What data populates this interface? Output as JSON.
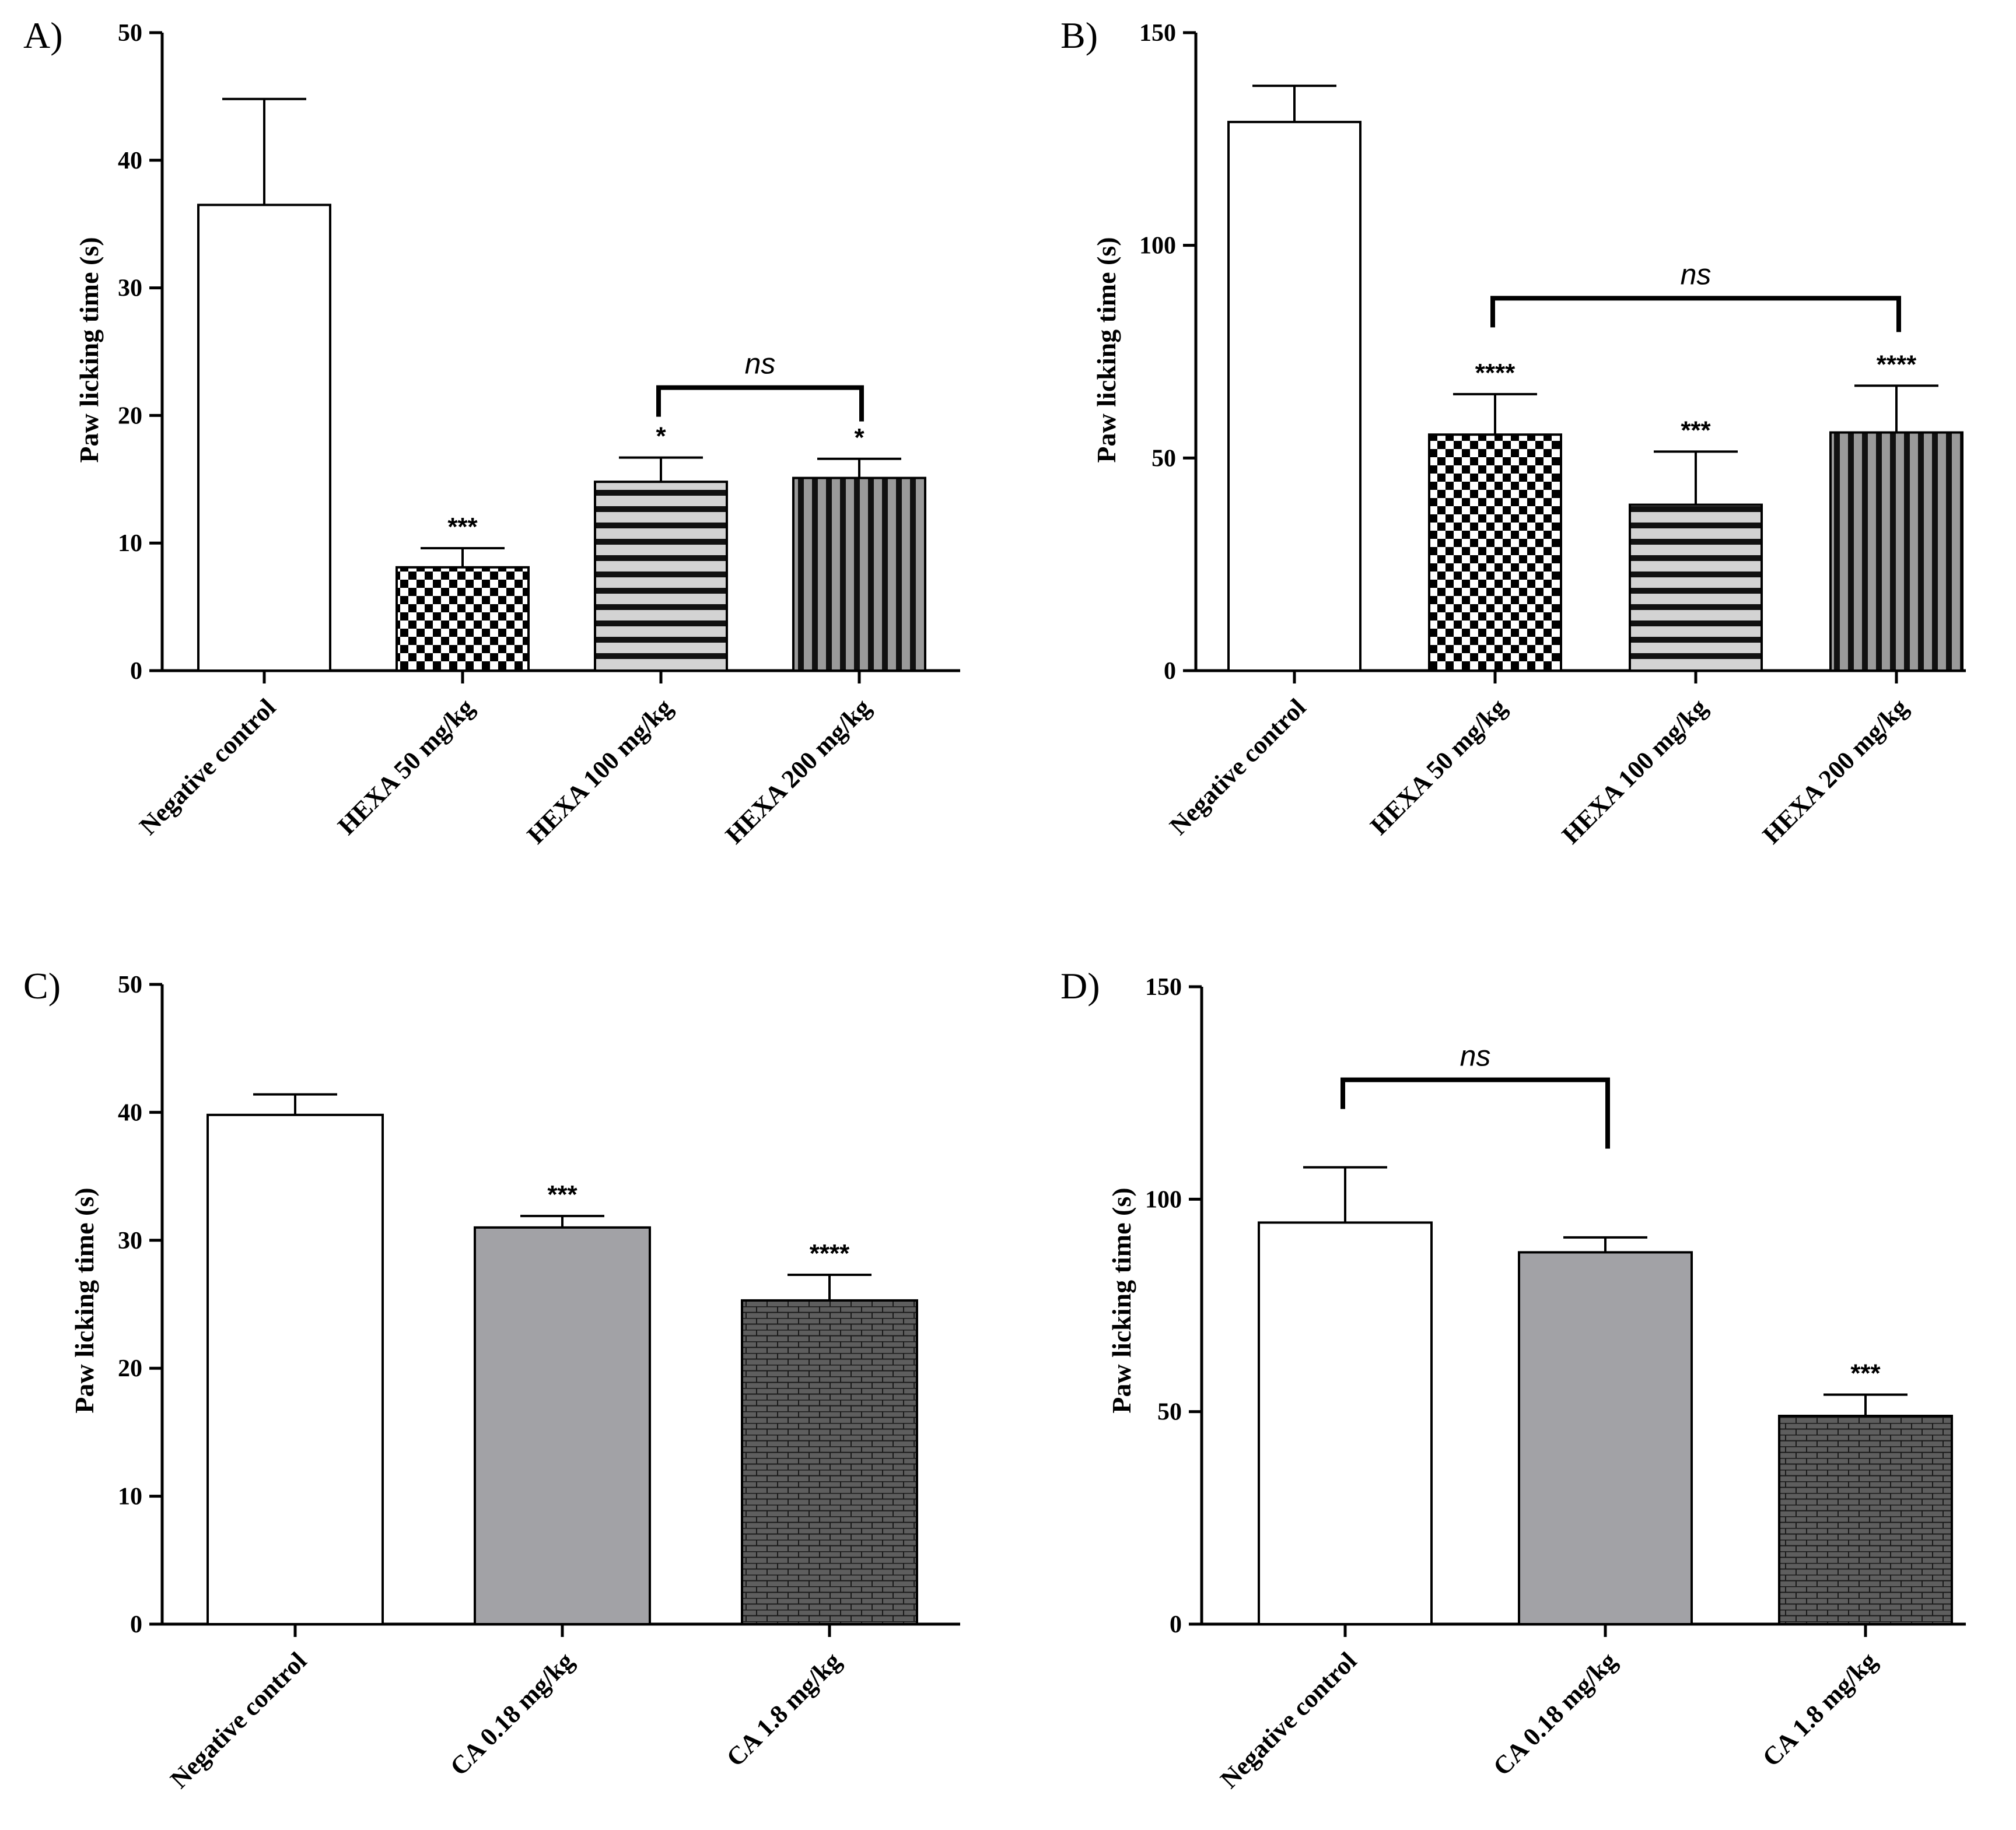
{
  "figure": {
    "panels": [
      "A",
      "B",
      "C",
      "D"
    ]
  },
  "chart_data": [
    {
      "id": "A",
      "panel_label": "A)",
      "type": "bar",
      "ylabel": "Paw licking time (s)",
      "ylim": [
        0,
        50
      ],
      "yticks": [
        0,
        10,
        20,
        30,
        40,
        50
      ],
      "categories": [
        "Negative control",
        "HEXA 50 mg/kg",
        "HEXA 100 mg/kg",
        "HEXA 200 mg/kg"
      ],
      "values": [
        36.5,
        8.1,
        14.8,
        15.1
      ],
      "errors": [
        8.3,
        1.5,
        1.9,
        1.5
      ],
      "patterns": [
        "white",
        "checker",
        "hstripe",
        "vstripe"
      ],
      "significance": [
        "",
        "***",
        "*",
        "*"
      ],
      "brackets": [
        {
          "from": 2,
          "to": 3,
          "label": "ns"
        }
      ]
    },
    {
      "id": "B",
      "panel_label": "B)",
      "type": "bar",
      "ylabel": "Paw licking time (s)",
      "ylim": [
        0,
        150
      ],
      "yticks": [
        0,
        50,
        100,
        150
      ],
      "categories": [
        "Negative control",
        "HEXA 50 mg/kg",
        "HEXA 100 mg/kg",
        "HEXA 200 mg/kg"
      ],
      "values": [
        129,
        55.5,
        39,
        56
      ],
      "errors": [
        8.5,
        9.5,
        12.5,
        11
      ],
      "patterns": [
        "white",
        "checker",
        "hstripe",
        "vstripe"
      ],
      "significance": [
        "",
        "****",
        "***",
        "****"
      ],
      "brackets": [
        {
          "from": 1,
          "to": 3,
          "label": "ns"
        }
      ]
    },
    {
      "id": "C",
      "panel_label": "C)",
      "type": "bar",
      "ylabel": "Paw licking time (s)",
      "ylim": [
        0,
        50
      ],
      "yticks": [
        0,
        10,
        20,
        30,
        40,
        50
      ],
      "categories": [
        "Negative control",
        "CA 0.18 mg/kg",
        "CA 1.8 mg/kg"
      ],
      "values": [
        39.8,
        31,
        25.3
      ],
      "errors": [
        1.6,
        0.9,
        2
      ],
      "patterns": [
        "white",
        "gray",
        "brick"
      ],
      "significance": [
        "",
        "***",
        "****"
      ],
      "brackets": []
    },
    {
      "id": "D",
      "panel_label": "D)",
      "type": "bar",
      "ylabel": "Paw licking time (s)",
      "ylim": [
        0,
        150
      ],
      "yticks": [
        0,
        50,
        100,
        150
      ],
      "categories": [
        "Negative control",
        "CA 0.18 mg/kg",
        "CA 1.8 mg/kg"
      ],
      "values": [
        94.5,
        87.5,
        49
      ],
      "errors": [
        13,
        3.5,
        5
      ],
      "patterns": [
        "white",
        "gray",
        "brick"
      ],
      "significance": [
        "",
        "",
        "***"
      ],
      "brackets": [
        {
          "from": 0,
          "to": 1,
          "label": "ns"
        }
      ]
    }
  ]
}
